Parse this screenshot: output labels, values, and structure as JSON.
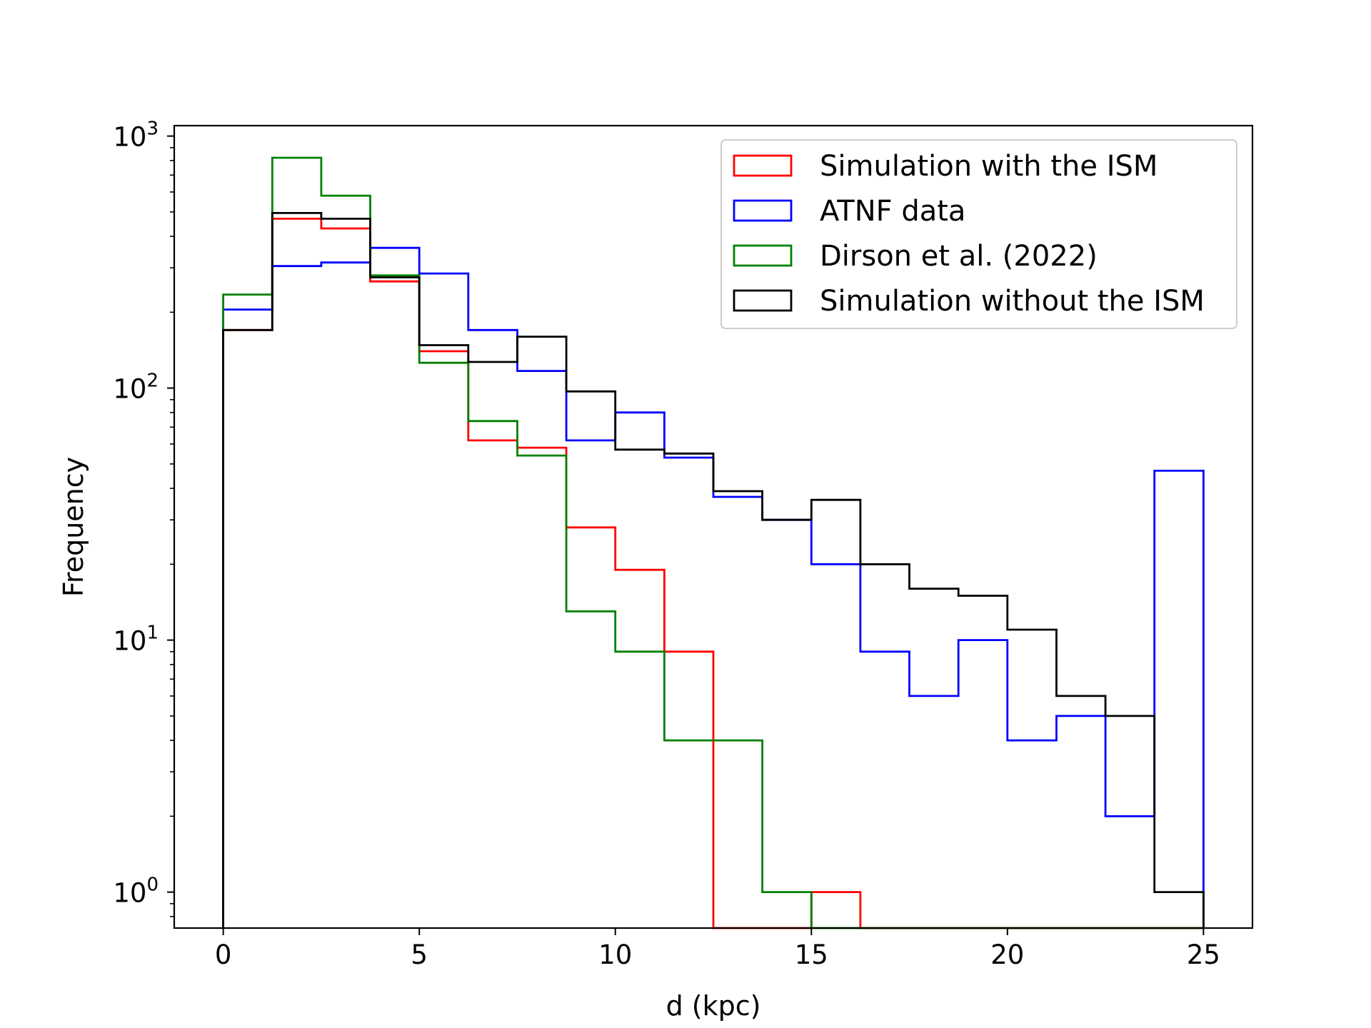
{
  "chart_data": {
    "type": "histogram",
    "xlabel": "d (kpc)",
    "ylabel": "Frequency",
    "yscale": "log",
    "xlim": [
      -1.25,
      26.25
    ],
    "ylim": [
      0.72,
      1100
    ],
    "bin_edges": [
      0,
      1.25,
      2.5,
      3.75,
      5,
      6.25,
      7.5,
      8.75,
      10,
      11.25,
      12.5,
      13.75,
      15,
      16.25,
      17.5,
      18.75,
      20,
      21.25,
      22.5,
      23.75,
      25
    ],
    "x_ticks": [
      0,
      5,
      10,
      15,
      20,
      25
    ],
    "x_tick_labels": [
      "0",
      "5",
      "10",
      "15",
      "20",
      "25"
    ],
    "y_ticks": [
      {
        "value": 1,
        "base": "10",
        "exp": "0"
      },
      {
        "value": 10,
        "base": "10",
        "exp": "1"
      },
      {
        "value": 100,
        "base": "10",
        "exp": "2"
      },
      {
        "value": 1000,
        "base": "10",
        "exp": "3"
      }
    ],
    "legend_position": "upper right",
    "series": [
      {
        "name": "Simulation with the ISM",
        "color": "#ff0000",
        "values": [
          170,
          470,
          430,
          265,
          140,
          62,
          58,
          28,
          19,
          9,
          0,
          0,
          1,
          0,
          0,
          0,
          0,
          0,
          0,
          0
        ]
      },
      {
        "name": "ATNF data",
        "color": "#0000ff",
        "values": [
          205,
          305,
          315,
          360,
          285,
          170,
          117,
          62,
          80,
          53,
          37,
          30,
          20,
          9,
          6,
          10,
          4,
          5,
          2,
          47
        ]
      },
      {
        "name": "Dirson et al. (2022)",
        "color": "#008000",
        "values": [
          235,
          820,
          580,
          280,
          126,
          74,
          54,
          13,
          9,
          4,
          4,
          1,
          0,
          0,
          0,
          0,
          0,
          0,
          0,
          0
        ]
      },
      {
        "name": "Simulation without the ISM",
        "color": "#000000",
        "values": [
          170,
          495,
          470,
          275,
          148,
          127,
          160,
          97,
          57,
          55,
          39,
          30,
          36,
          20,
          16,
          15,
          11,
          6,
          5,
          1
        ]
      }
    ]
  }
}
